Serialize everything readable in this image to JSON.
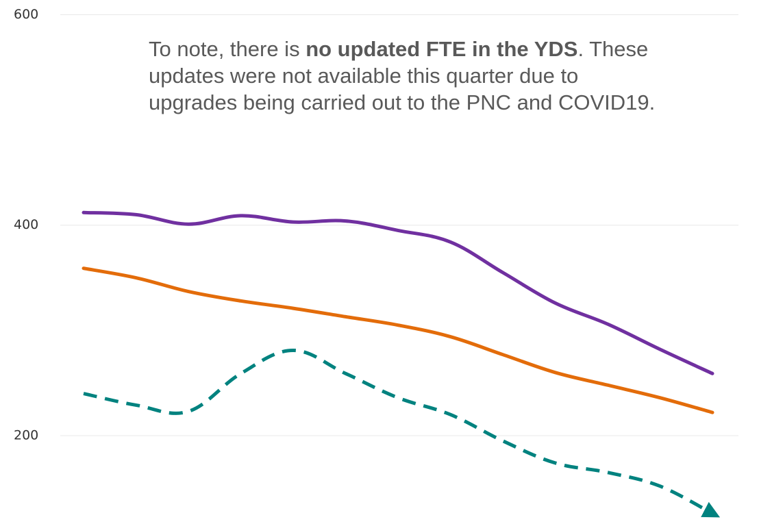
{
  "chart_data": {
    "type": "line",
    "annotation": [
      "To note, there is ",
      "no updated FTE in the YDS",
      ". These",
      "updates were not available this quarter due to",
      "upgrades being carried out to the PNC and COVID19."
    ],
    "categories": [
      null,
      null,
      null,
      null,
      null,
      null,
      null,
      null,
      null,
      null,
      null,
      null,
      null
    ],
    "series": [
      {
        "color": "#7030a0",
        "dashed": false,
        "values": [
          412,
          410,
          401,
          409,
          403,
          404,
          395,
          384,
          355,
          326,
          306,
          282,
          259
        ]
      },
      {
        "color": "#e36c0a",
        "dashed": false,
        "values": [
          359,
          350,
          337,
          328,
          321,
          313,
          305,
          294,
          277,
          260,
          248,
          236,
          222
        ]
      },
      {
        "color": "#00827f",
        "dashed": true,
        "arrow": true,
        "values": [
          240,
          229,
          223,
          259,
          281,
          259,
          236,
          220,
          195,
          174,
          165,
          152,
          126
        ]
      }
    ],
    "ylim": [
      116,
      614
    ],
    "yticks": [
      200,
      400,
      600
    ],
    "grid": true
  }
}
